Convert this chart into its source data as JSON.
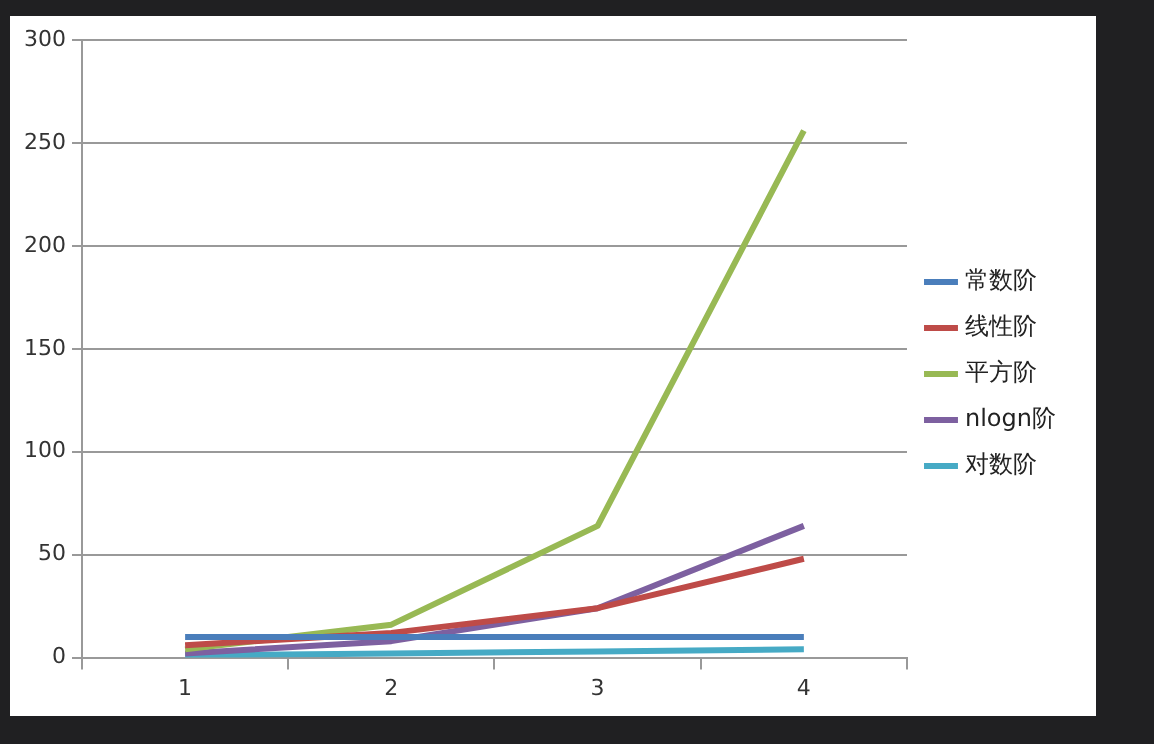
{
  "chart_data": {
    "type": "line",
    "categories": [
      "1",
      "2",
      "3",
      "4"
    ],
    "series": [
      {
        "name": "常数阶",
        "color": "#4a7ebb",
        "values": [
          10,
          10,
          10,
          10
        ]
      },
      {
        "name": "线性阶",
        "color": "#be4b48",
        "values": [
          6,
          12,
          24,
          48
        ]
      },
      {
        "name": "平方阶",
        "color": "#98b954",
        "values": [
          4,
          16,
          64,
          256
        ]
      },
      {
        "name": "nlogn阶",
        "color": "#7d60a0",
        "values": [
          2,
          8,
          24,
          64
        ]
      },
      {
        "name": "对数阶",
        "color": "#46aac5",
        "values": [
          1,
          2,
          3,
          4
        ]
      }
    ],
    "ylim": [
      0,
      300
    ],
    "yticks": [
      0,
      50,
      100,
      150,
      200,
      250,
      300
    ],
    "grid": "y",
    "legend": "right",
    "marker": "none",
    "line_style": "solid"
  }
}
